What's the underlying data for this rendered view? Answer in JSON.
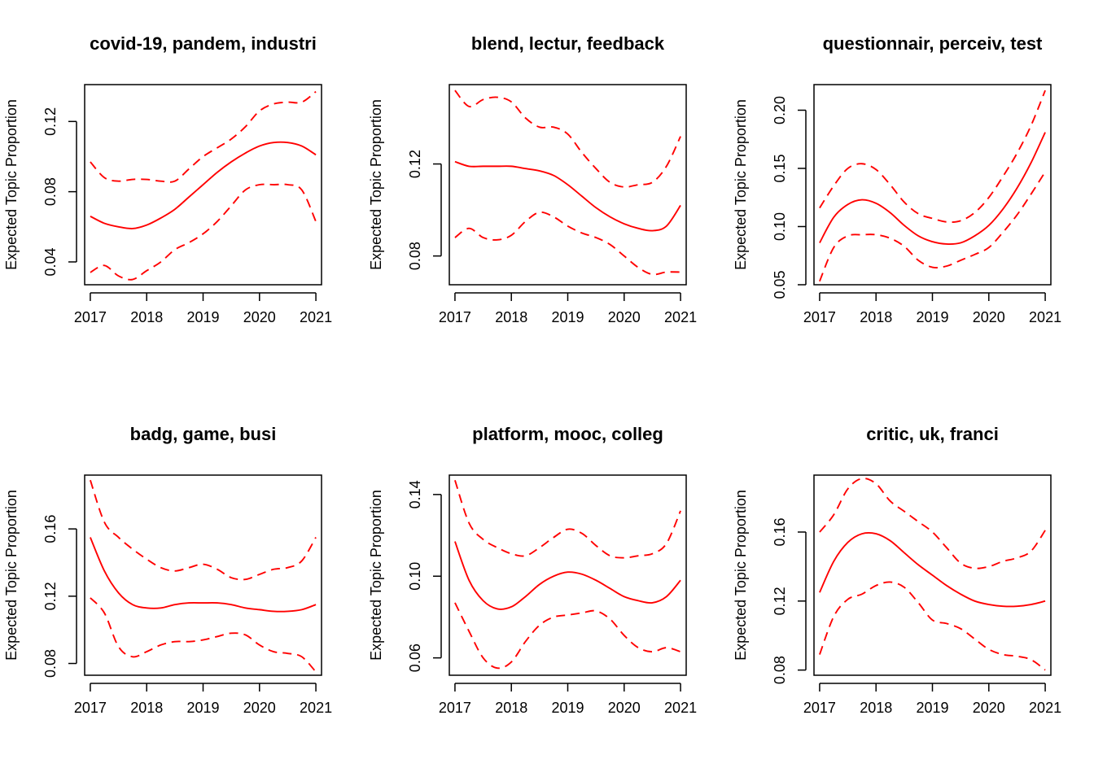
{
  "colors": {
    "line": "#ff0000",
    "axis": "#000000",
    "background": "#ffffff"
  },
  "chart_data": [
    {
      "type": "line",
      "title": "covid-19, pandem, industri",
      "xlabel": "",
      "ylabel": "Expected Topic Proportion",
      "xlim": [
        2016.9,
        2021.1
      ],
      "ylim": [
        0.027,
        0.141
      ],
      "xticks": [
        "2017",
        "2018",
        "2019",
        "2020",
        "2021"
      ],
      "yticks": [
        "0.04",
        "0.08",
        "0.12"
      ],
      "x": [
        2017,
        2017.25,
        2017.5,
        2017.75,
        2018,
        2018.25,
        2018.5,
        2018.75,
        2019,
        2019.25,
        2019.5,
        2019.75,
        2020,
        2020.25,
        2020.5,
        2020.75,
        2021
      ],
      "series": [
        {
          "style": "solid",
          "values": [
            0.066,
            0.062,
            0.06,
            0.059,
            0.061,
            0.065,
            0.07,
            0.077,
            0.084,
            0.091,
            0.097,
            0.102,
            0.106,
            0.108,
            0.108,
            0.106,
            0.101
          ]
        },
        {
          "style": "dashed",
          "values": [
            0.097,
            0.088,
            0.086,
            0.087,
            0.087,
            0.086,
            0.086,
            0.093,
            0.1,
            0.105,
            0.11,
            0.117,
            0.126,
            0.13,
            0.131,
            0.131,
            0.137
          ]
        },
        {
          "style": "dashed",
          "values": [
            0.034,
            0.038,
            0.032,
            0.03,
            0.035,
            0.04,
            0.047,
            0.051,
            0.056,
            0.063,
            0.072,
            0.081,
            0.084,
            0.084,
            0.084,
            0.081,
            0.063
          ]
        }
      ]
    },
    {
      "type": "line",
      "title": "blend, lectur, feedback",
      "xlabel": "",
      "ylabel": "Expected Topic Proportion",
      "xlim": [
        2016.9,
        2021.1
      ],
      "ylim": [
        0.0675,
        0.1545
      ],
      "xticks": [
        "2017",
        "2018",
        "2019",
        "2020",
        "2021"
      ],
      "yticks": [
        "0.08",
        "0.12"
      ],
      "x": [
        2017,
        2017.25,
        2017.5,
        2017.75,
        2018,
        2018.25,
        2018.5,
        2018.75,
        2019,
        2019.25,
        2019.5,
        2019.75,
        2020,
        2020.25,
        2020.5,
        2020.75,
        2021
      ],
      "series": [
        {
          "style": "solid",
          "values": [
            0.121,
            0.119,
            0.119,
            0.119,
            0.119,
            0.118,
            0.117,
            0.115,
            0.111,
            0.106,
            0.101,
            0.097,
            0.094,
            0.092,
            0.091,
            0.093,
            0.102
          ]
        },
        {
          "style": "dashed",
          "values": [
            0.152,
            0.145,
            0.148,
            0.149,
            0.147,
            0.14,
            0.136,
            0.136,
            0.133,
            0.125,
            0.118,
            0.112,
            0.11,
            0.111,
            0.112,
            0.119,
            0.132
          ]
        },
        {
          "style": "dashed",
          "values": [
            0.088,
            0.092,
            0.088,
            0.087,
            0.089,
            0.095,
            0.099,
            0.097,
            0.093,
            0.09,
            0.088,
            0.085,
            0.08,
            0.075,
            0.072,
            0.073,
            0.073
          ]
        }
      ]
    },
    {
      "type": "line",
      "title": "questionnair, perceiv, test",
      "xlabel": "",
      "ylabel": "Expected Topic Proportion",
      "xlim": [
        2016.9,
        2021.1
      ],
      "ylim": [
        0.05,
        0.222
      ],
      "xticks": [
        "2017",
        "2018",
        "2019",
        "2020",
        "2021"
      ],
      "yticks": [
        "0.05",
        "0.10",
        "0.15",
        "0.20"
      ],
      "x": [
        2017,
        2017.25,
        2017.5,
        2017.75,
        2018,
        2018.25,
        2018.5,
        2018.75,
        2019,
        2019.25,
        2019.5,
        2019.75,
        2020,
        2020.25,
        2020.5,
        2020.75,
        2021
      ],
      "series": [
        {
          "style": "solid",
          "values": [
            0.086,
            0.108,
            0.119,
            0.123,
            0.12,
            0.112,
            0.101,
            0.092,
            0.087,
            0.085,
            0.086,
            0.092,
            0.101,
            0.115,
            0.133,
            0.155,
            0.181
          ]
        },
        {
          "style": "dashed",
          "values": [
            0.116,
            0.135,
            0.15,
            0.154,
            0.149,
            0.136,
            0.121,
            0.111,
            0.107,
            0.104,
            0.105,
            0.112,
            0.125,
            0.143,
            0.163,
            0.187,
            0.217
          ]
        },
        {
          "style": "dashed",
          "values": [
            0.053,
            0.082,
            0.092,
            0.093,
            0.093,
            0.09,
            0.083,
            0.071,
            0.065,
            0.066,
            0.071,
            0.076,
            0.082,
            0.095,
            0.11,
            0.128,
            0.147
          ]
        }
      ]
    },
    {
      "type": "line",
      "title": "badg, game, busi",
      "xlabel": "",
      "ylabel": "Expected Topic Proportion",
      "xlim": [
        2016.9,
        2021.1
      ],
      "ylim": [
        0.073,
        0.192
      ],
      "xticks": [
        "2017",
        "2018",
        "2019",
        "2020",
        "2021"
      ],
      "yticks": [
        "0.08",
        "0.12",
        "0.16"
      ],
      "x": [
        2017,
        2017.25,
        2017.5,
        2017.75,
        2018,
        2018.25,
        2018.5,
        2018.75,
        2019,
        2019.25,
        2019.5,
        2019.75,
        2020,
        2020.25,
        2020.5,
        2020.75,
        2021
      ],
      "series": [
        {
          "style": "solid",
          "values": [
            0.155,
            0.135,
            0.122,
            0.115,
            0.113,
            0.113,
            0.115,
            0.116,
            0.116,
            0.116,
            0.115,
            0.113,
            0.112,
            0.111,
            0.111,
            0.112,
            0.115
          ]
        },
        {
          "style": "dashed",
          "values": [
            0.189,
            0.164,
            0.155,
            0.148,
            0.142,
            0.137,
            0.135,
            0.137,
            0.139,
            0.136,
            0.131,
            0.13,
            0.133,
            0.136,
            0.137,
            0.141,
            0.155
          ]
        },
        {
          "style": "dashed",
          "values": [
            0.119,
            0.11,
            0.09,
            0.084,
            0.087,
            0.091,
            0.093,
            0.093,
            0.094,
            0.096,
            0.098,
            0.097,
            0.091,
            0.087,
            0.086,
            0.084,
            0.075
          ]
        }
      ]
    },
    {
      "type": "line",
      "title": "platform, mooc, colleg",
      "xlabel": "",
      "ylabel": "Expected Topic Proportion",
      "xlim": [
        2016.9,
        2021.1
      ],
      "ylim": [
        0.0515,
        0.1495
      ],
      "xticks": [
        "2017",
        "2018",
        "2019",
        "2020",
        "2021"
      ],
      "yticks": [
        "0.06",
        "0.10",
        "0.14"
      ],
      "x": [
        2017,
        2017.25,
        2017.5,
        2017.75,
        2018,
        2018.25,
        2018.5,
        2018.75,
        2019,
        2019.25,
        2019.5,
        2019.75,
        2020,
        2020.25,
        2020.5,
        2020.75,
        2021
      ],
      "series": [
        {
          "style": "solid",
          "values": [
            0.117,
            0.098,
            0.088,
            0.084,
            0.085,
            0.09,
            0.096,
            0.1,
            0.102,
            0.101,
            0.098,
            0.094,
            0.09,
            0.088,
            0.087,
            0.09,
            0.098
          ]
        },
        {
          "style": "dashed",
          "values": [
            0.147,
            0.126,
            0.118,
            0.114,
            0.111,
            0.11,
            0.114,
            0.119,
            0.123,
            0.121,
            0.115,
            0.11,
            0.109,
            0.11,
            0.111,
            0.116,
            0.132
          ]
        },
        {
          "style": "dashed",
          "values": [
            0.087,
            0.073,
            0.06,
            0.055,
            0.058,
            0.068,
            0.076,
            0.08,
            0.081,
            0.082,
            0.083,
            0.079,
            0.071,
            0.065,
            0.063,
            0.065,
            0.063
          ]
        }
      ]
    },
    {
      "type": "line",
      "title": "critic, uk, franci",
      "xlabel": "",
      "ylabel": "Expected Topic Proportion",
      "xlim": [
        2016.9,
        2021.1
      ],
      "ylim": [
        0.077,
        0.193
      ],
      "xticks": [
        "2017",
        "2018",
        "2019",
        "2020",
        "2021"
      ],
      "yticks": [
        "0.08",
        "0.12",
        "0.16"
      ],
      "x": [
        2017,
        2017.25,
        2017.5,
        2017.75,
        2018,
        2018.25,
        2018.5,
        2018.75,
        2019,
        2019.25,
        2019.5,
        2019.75,
        2020,
        2020.25,
        2020.5,
        2020.75,
        2021
      ],
      "series": [
        {
          "style": "solid",
          "values": [
            0.125,
            0.143,
            0.154,
            0.159,
            0.159,
            0.155,
            0.148,
            0.141,
            0.135,
            0.129,
            0.124,
            0.12,
            0.118,
            0.117,
            0.117,
            0.118,
            0.12
          ]
        },
        {
          "style": "dashed",
          "values": [
            0.16,
            0.17,
            0.185,
            0.191,
            0.188,
            0.178,
            0.172,
            0.166,
            0.16,
            0.151,
            0.142,
            0.139,
            0.14,
            0.143,
            0.145,
            0.149,
            0.161
          ]
        },
        {
          "style": "dashed",
          "values": [
            0.089,
            0.111,
            0.121,
            0.124,
            0.129,
            0.131,
            0.128,
            0.119,
            0.109,
            0.107,
            0.104,
            0.098,
            0.092,
            0.089,
            0.088,
            0.086,
            0.08
          ]
        }
      ]
    }
  ]
}
